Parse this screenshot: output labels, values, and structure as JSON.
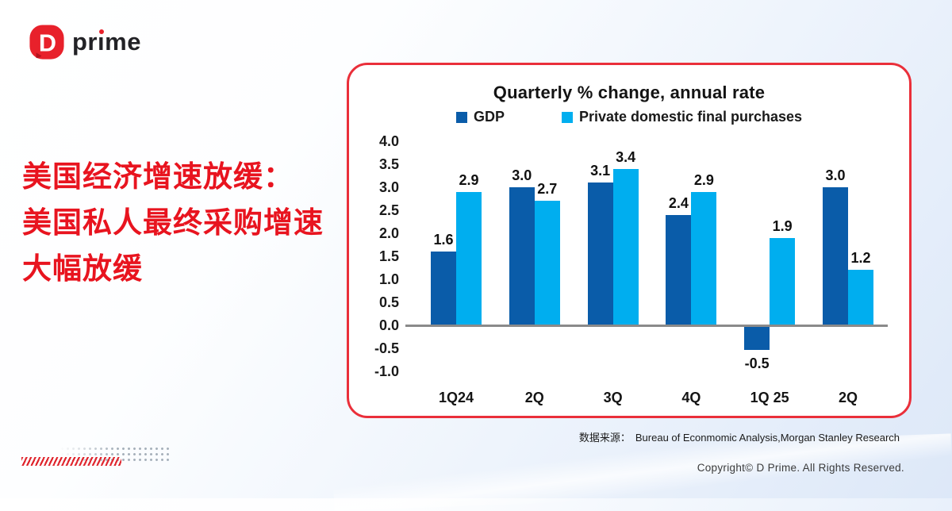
{
  "logo": {
    "mark_letter": "D",
    "word_pre": "pr",
    "i_dotless": "ı",
    "word_post": "me",
    "mark_color": "#e8212b"
  },
  "headline": {
    "lines": [
      "美国经济增速放缓：",
      "美国私人最终采购增速",
      "大幅放缓"
    ],
    "color": "#e8141f"
  },
  "card": {
    "border_color": "#ea2f3a",
    "background": "#ffffff"
  },
  "chart_data": {
    "type": "bar",
    "title": "Quarterly % change, annual rate",
    "categories": [
      "1Q24",
      "2Q",
      "3Q",
      "4Q",
      "1Q 25",
      "2Q"
    ],
    "series": [
      {
        "name": "GDP",
        "color": "#0a5ca9",
        "values": [
          1.6,
          3.0,
          3.1,
          2.4,
          -0.5,
          3.0
        ]
      },
      {
        "name": "Private domestic final purchases",
        "color": "#00aeef",
        "values": [
          2.9,
          2.7,
          3.4,
          2.9,
          1.9,
          1.2
        ]
      }
    ],
    "ylim": [
      -1.0,
      4.0
    ],
    "yticks": [
      4.0,
      3.5,
      3.0,
      2.5,
      2.0,
      1.5,
      1.0,
      0.5,
      0.0,
      -0.5,
      -1.0
    ],
    "ytick_step": 0.5,
    "grid": false,
    "legend_position": "top-center",
    "baseline_color": "#8a8a8a",
    "value_labels": true
  },
  "footer": {
    "source_label": "数据来源：",
    "source_text": "Bureau of Econmomic Analysis,Morgan Stanley Research",
    "copyright": "Copyright© D Prime. All Rights Reserved."
  }
}
